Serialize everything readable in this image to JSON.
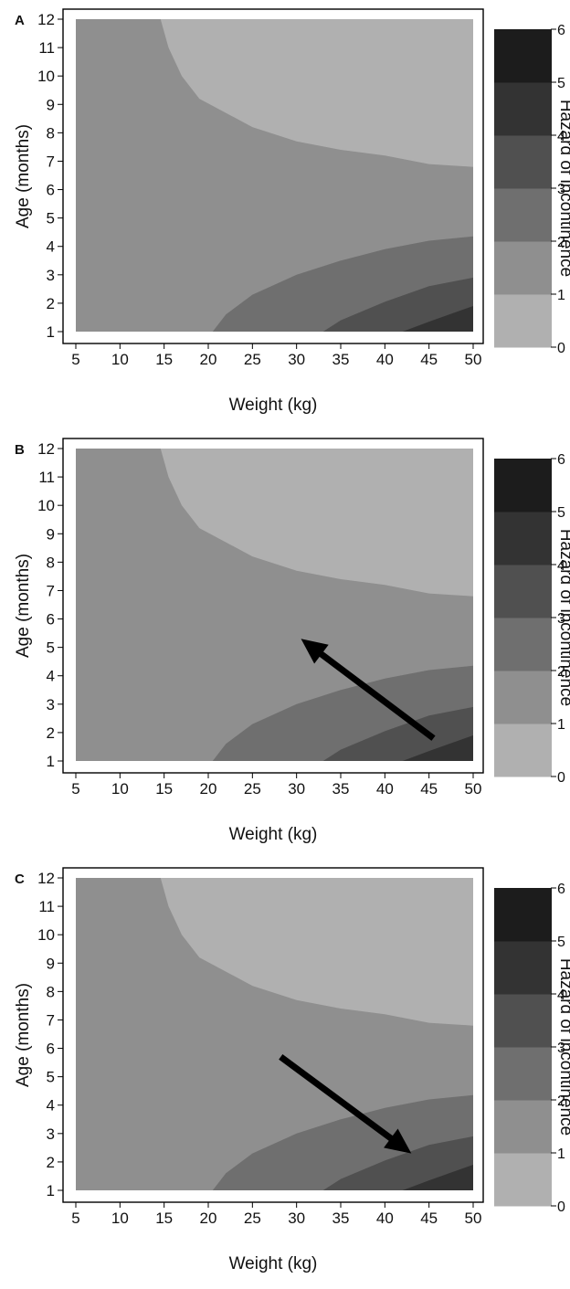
{
  "palette": {
    "band_0_1": "#b0b0b0",
    "band_1_2": "#8f8f8f",
    "band_2_3": "#6f6f6f",
    "band_3_4": "#505050",
    "band_4_5": "#333333",
    "band_5_6": "#1c1c1c",
    "arrow": "#000000"
  },
  "chart_data": [
    {
      "type": "heatmap",
      "panel_label": "A",
      "xlabel": "Weight (kg)",
      "ylabel": "Age (months)",
      "x_ticks": [
        5,
        10,
        15,
        20,
        25,
        30,
        35,
        40,
        45,
        50
      ],
      "y_ticks": [
        1,
        2,
        3,
        4,
        5,
        6,
        7,
        8,
        9,
        10,
        11,
        12
      ],
      "xlim": [
        5,
        50
      ],
      "ylim": [
        1,
        12
      ],
      "colorbar": {
        "label": "Hazard of incontinence",
        "ticks": [
          0,
          1,
          2,
          3,
          4,
          5,
          6
        ],
        "range": [
          0,
          6
        ]
      },
      "contours": [
        {
          "level": 1,
          "points": [
            [
              14.6,
              12
            ],
            [
              15.5,
              11
            ],
            [
              17,
              10
            ],
            [
              19,
              9.2
            ],
            [
              22,
              8.7
            ],
            [
              25,
              8.2
            ],
            [
              30,
              7.7
            ],
            [
              35,
              7.4
            ],
            [
              40,
              7.2
            ],
            [
              45,
              6.9
            ],
            [
              50,
              6.8
            ]
          ]
        },
        {
          "level": 2,
          "points": [
            [
              20.5,
              1
            ],
            [
              22,
              1.6
            ],
            [
              25,
              2.3
            ],
            [
              30,
              3.0
            ],
            [
              35,
              3.5
            ],
            [
              40,
              3.9
            ],
            [
              45,
              4.2
            ],
            [
              50,
              4.35
            ]
          ]
        },
        {
          "level": 3,
          "points": [
            [
              33,
              1
            ],
            [
              35,
              1.4
            ],
            [
              40,
              2.05
            ],
            [
              45,
              2.6
            ],
            [
              50,
              2.9
            ]
          ]
        },
        {
          "level": 4,
          "points": [
            [
              42,
              1
            ],
            [
              45,
              1.35
            ],
            [
              50,
              1.9
            ]
          ]
        }
      ],
      "arrow": null
    },
    {
      "type": "heatmap",
      "panel_label": "B",
      "xlabel": "Weight (kg)",
      "ylabel": "Age (months)",
      "x_ticks": [
        5,
        10,
        15,
        20,
        25,
        30,
        35,
        40,
        45,
        50
      ],
      "y_ticks": [
        1,
        2,
        3,
        4,
        5,
        6,
        7,
        8,
        9,
        10,
        11,
        12
      ],
      "xlim": [
        5,
        50
      ],
      "ylim": [
        1,
        12
      ],
      "colorbar": {
        "label": "Hazard of incontinence",
        "ticks": [
          0,
          1,
          2,
          3,
          4,
          5,
          6
        ],
        "range": [
          0,
          6
        ]
      },
      "contours": [
        {
          "level": 1,
          "points": [
            [
              14.6,
              12
            ],
            [
              15.5,
              11
            ],
            [
              17,
              10
            ],
            [
              19,
              9.2
            ],
            [
              22,
              8.7
            ],
            [
              25,
              8.2
            ],
            [
              30,
              7.7
            ],
            [
              35,
              7.4
            ],
            [
              40,
              7.2
            ],
            [
              45,
              6.9
            ],
            [
              50,
              6.8
            ]
          ]
        },
        {
          "level": 2,
          "points": [
            [
              20.5,
              1
            ],
            [
              22,
              1.6
            ],
            [
              25,
              2.3
            ],
            [
              30,
              3.0
            ],
            [
              35,
              3.5
            ],
            [
              40,
              3.9
            ],
            [
              45,
              4.2
            ],
            [
              50,
              4.35
            ]
          ]
        },
        {
          "level": 3,
          "points": [
            [
              33,
              1
            ],
            [
              35,
              1.4
            ],
            [
              40,
              2.05
            ],
            [
              45,
              2.6
            ],
            [
              50,
              2.9
            ]
          ]
        },
        {
          "level": 4,
          "points": [
            [
              42,
              1
            ],
            [
              45,
              1.35
            ],
            [
              50,
              1.9
            ]
          ]
        }
      ],
      "arrow": {
        "from": [
          45.5,
          1.8
        ],
        "to": [
          30.5,
          5.3
        ]
      }
    },
    {
      "type": "heatmap",
      "panel_label": "C",
      "xlabel": "Weight (kg)",
      "ylabel": "Age (months)",
      "x_ticks": [
        5,
        10,
        15,
        20,
        25,
        30,
        35,
        40,
        45,
        50
      ],
      "y_ticks": [
        1,
        2,
        3,
        4,
        5,
        6,
        7,
        8,
        9,
        10,
        11,
        12
      ],
      "xlim": [
        5,
        50
      ],
      "ylim": [
        1,
        12
      ],
      "colorbar": {
        "label": "Hazard of incontinence",
        "ticks": [
          0,
          1,
          2,
          3,
          4,
          5,
          6
        ],
        "range": [
          0,
          6
        ]
      },
      "contours": [
        {
          "level": 1,
          "points": [
            [
              14.6,
              12
            ],
            [
              15.5,
              11
            ],
            [
              17,
              10
            ],
            [
              19,
              9.2
            ],
            [
              22,
              8.7
            ],
            [
              25,
              8.2
            ],
            [
              30,
              7.7
            ],
            [
              35,
              7.4
            ],
            [
              40,
              7.2
            ],
            [
              45,
              6.9
            ],
            [
              50,
              6.8
            ]
          ]
        },
        {
          "level": 2,
          "points": [
            [
              20.5,
              1
            ],
            [
              22,
              1.6
            ],
            [
              25,
              2.3
            ],
            [
              30,
              3.0
            ],
            [
              35,
              3.5
            ],
            [
              40,
              3.9
            ],
            [
              45,
              4.2
            ],
            [
              50,
              4.35
            ]
          ]
        },
        {
          "level": 3,
          "points": [
            [
              33,
              1
            ],
            [
              35,
              1.4
            ],
            [
              40,
              2.05
            ],
            [
              45,
              2.6
            ],
            [
              50,
              2.9
            ]
          ]
        },
        {
          "level": 4,
          "points": [
            [
              42,
              1
            ],
            [
              45,
              1.35
            ],
            [
              50,
              1.9
            ]
          ]
        }
      ],
      "arrow": {
        "from": [
          28.2,
          5.7
        ],
        "to": [
          43,
          2.3
        ]
      }
    }
  ]
}
